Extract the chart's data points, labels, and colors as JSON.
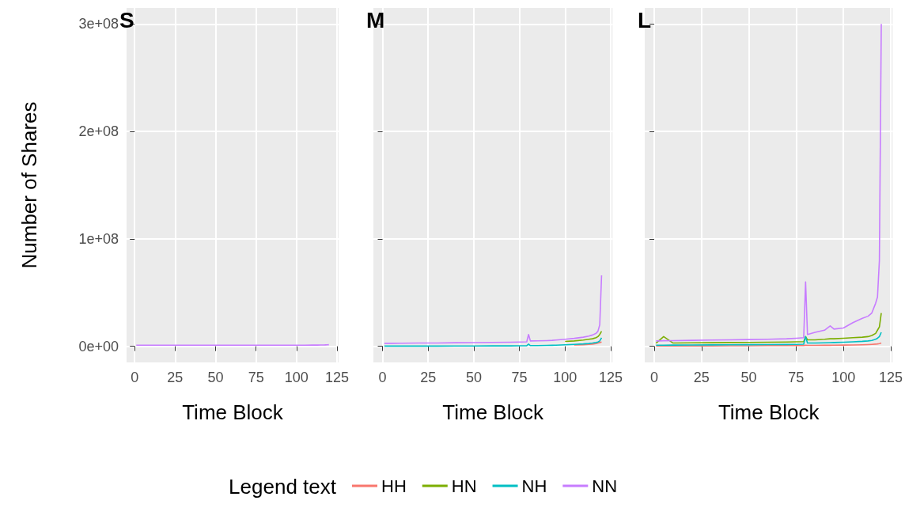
{
  "chart_data": [
    {
      "type": "line",
      "title": "S",
      "xlabel": "Time Block",
      "ylabel": "Number of Shares",
      "legend_title": "Legend text",
      "legend": "bottom",
      "grid": true,
      "x": [
        1,
        5,
        10,
        20,
        30,
        40,
        50,
        60,
        70,
        75,
        79,
        80,
        81,
        85,
        90,
        93,
        95,
        100,
        105,
        110,
        113,
        115,
        117,
        118,
        119,
        120
      ],
      "xlim": [
        -5,
        126
      ],
      "xticks": [
        0,
        25,
        50,
        75,
        100,
        125
      ],
      "ylim": [
        -15000000,
        315000000
      ],
      "yticks": [
        {
          "value": 0,
          "label": "0e+00"
        },
        {
          "value": 100000000,
          "label": "1e+08"
        },
        {
          "value": 200000000,
          "label": "2e+08"
        },
        {
          "value": 300000000,
          "label": "3e+08"
        }
      ],
      "series": [
        {
          "name": "HH",
          "color": "#f8766d",
          "values": [
            null,
            null,
            null,
            null,
            null,
            null,
            null,
            null,
            null,
            null,
            null,
            null,
            null,
            null,
            null,
            null,
            null,
            null,
            null,
            null,
            null,
            null,
            null,
            null,
            null,
            null
          ]
        },
        {
          "name": "HN",
          "color": "#7cae00",
          "values": [
            null,
            null,
            null,
            null,
            null,
            null,
            null,
            null,
            null,
            null,
            null,
            null,
            null,
            null,
            null,
            null,
            null,
            null,
            null,
            null,
            null,
            null,
            null,
            null,
            null,
            null
          ]
        },
        {
          "name": "NH",
          "color": "#00bfc4",
          "values": [
            null,
            null,
            null,
            null,
            null,
            null,
            null,
            null,
            null,
            null,
            null,
            null,
            null,
            null,
            null,
            null,
            null,
            null,
            null,
            null,
            null,
            null,
            null,
            null,
            null,
            null
          ]
        },
        {
          "name": "NN",
          "color": "#c77cff",
          "values": [
            1000000,
            1000000,
            1000000,
            1000000,
            1000000,
            1000000,
            1000000,
            1000000,
            1000000,
            1000000,
            1000000,
            1000000,
            1000000,
            1000000,
            1000000,
            1000000,
            1000000,
            1000000,
            1000000,
            1100000,
            1100000,
            1200000,
            1200000,
            1300000,
            1400000,
            1500000
          ]
        }
      ]
    },
    {
      "type": "line",
      "title": "M",
      "xlabel": "Time Block",
      "grid": true,
      "tick_labels": "x",
      "x": [
        1,
        5,
        10,
        20,
        30,
        40,
        50,
        60,
        70,
        75,
        79,
        80,
        81,
        85,
        90,
        93,
        95,
        100,
        105,
        110,
        113,
        115,
        117,
        118,
        119,
        120
      ],
      "xlim": [
        -5,
        126
      ],
      "xticks": [
        0,
        25,
        50,
        75,
        100,
        125
      ],
      "ylim": [
        -15000000,
        315000000
      ],
      "yticks": [
        {
          "value": 0,
          "label": null
        },
        {
          "value": 100000000,
          "label": null
        },
        {
          "value": 200000000,
          "label": null
        },
        {
          "value": 300000000,
          "label": null
        }
      ],
      "series": [
        {
          "color": "#f8766d",
          "values": [
            null,
            null,
            null,
            null,
            null,
            null,
            null,
            null,
            null,
            null,
            null,
            null,
            null,
            null,
            null,
            null,
            null,
            null,
            1200000,
            1500000,
            1800000,
            2000000,
            2500000,
            3000000,
            3500000,
            4000000
          ]
        },
        {
          "color": "#7cae00",
          "values": [
            null,
            null,
            null,
            null,
            null,
            null,
            null,
            null,
            null,
            null,
            null,
            null,
            null,
            null,
            null,
            null,
            null,
            4500000,
            5000000,
            5800000,
            6500000,
            7000000,
            8000000,
            9000000,
            11000000,
            14000000
          ]
        },
        {
          "color": "#00bfc4",
          "values": [
            200000,
            200000,
            200000,
            200000,
            200000,
            300000,
            300000,
            400000,
            400000,
            500000,
            500000,
            2000000,
            600000,
            700000,
            800000,
            900000,
            1000000,
            1400000,
            1800000,
            2200000,
            2600000,
            3000000,
            3500000,
            4000000,
            5000000,
            8000000
          ]
        },
        {
          "color": "#c77cff",
          "values": [
            2800000,
            2800000,
            2900000,
            3000000,
            3100000,
            3300000,
            3400000,
            3600000,
            3800000,
            4000000,
            4200000,
            11000000,
            5000000,
            5100000,
            5300000,
            5500000,
            5800000,
            6600000,
            7400000,
            8500000,
            9500000,
            10500000,
            12000000,
            14000000,
            20000000,
            66000000
          ]
        }
      ]
    },
    {
      "type": "line",
      "title": "L",
      "xlabel": "Time Block",
      "grid": true,
      "tick_labels": "x",
      "x": [
        1,
        5,
        10,
        20,
        30,
        40,
        50,
        60,
        70,
        75,
        79,
        80,
        81,
        85,
        90,
        93,
        95,
        100,
        105,
        110,
        113,
        115,
        117,
        118,
        119,
        120
      ],
      "xlim": [
        -5,
        126
      ],
      "xticks": [
        0,
        25,
        50,
        75,
        100,
        125
      ],
      "ylim": [
        -15000000,
        315000000
      ],
      "yticks": [
        {
          "value": 0,
          "label": null
        },
        {
          "value": 100000000,
          "label": null
        },
        {
          "value": 200000000,
          "label": null
        },
        {
          "value": 300000000,
          "label": null
        }
      ],
      "series": [
        {
          "color": "#f8766d",
          "values": [
            300000,
            300000,
            300000,
            400000,
            400000,
            500000,
            500000,
            600000,
            600000,
            700000,
            700000,
            1000000,
            800000,
            800000,
            900000,
            900000,
            1000000,
            1100000,
            1200000,
            1400000,
            1600000,
            1800000,
            2000000,
            2200000,
            2500000,
            3000000
          ]
        },
        {
          "color": "#7cae00",
          "values": [
            3000000,
            9000000,
            3000000,
            3200000,
            3300000,
            3500000,
            3600000,
            3800000,
            4000000,
            4200000,
            4300000,
            9000000,
            6000000,
            6000000,
            6500000,
            7000000,
            7000000,
            7500000,
            8000000,
            8500000,
            9000000,
            10000000,
            12000000,
            15000000,
            18000000,
            31000000
          ]
        },
        {
          "color": "#00bfc4",
          "values": [
            1000000,
            1000000,
            1100000,
            1200000,
            1300000,
            1400000,
            1500000,
            1600000,
            1700000,
            1800000,
            1900000,
            9000000,
            3000000,
            3000000,
            3200000,
            3400000,
            3500000,
            3800000,
            4200000,
            4600000,
            5000000,
            5500000,
            6500000,
            7500000,
            9000000,
            13000000
          ]
        },
        {
          "color": "#c77cff",
          "values": [
            5000000,
            5200000,
            5300000,
            5500000,
            5800000,
            6000000,
            6300000,
            6600000,
            7000000,
            7500000,
            8000000,
            60000000,
            11000000,
            13000000,
            15000000,
            19000000,
            16000000,
            17000000,
            22000000,
            26000000,
            28000000,
            31000000,
            40000000,
            46000000,
            80000000,
            300000000
          ]
        }
      ]
    }
  ]
}
